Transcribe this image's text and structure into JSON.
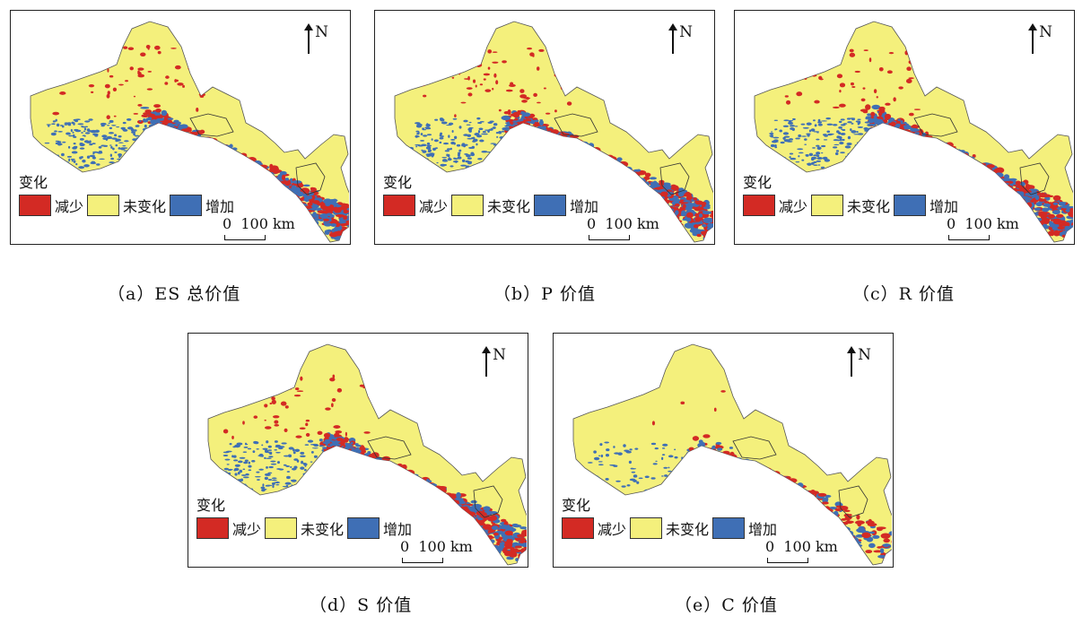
{
  "legend": {
    "title": "变化",
    "items": [
      {
        "label": "减少",
        "color": "#d32a24"
      },
      {
        "label": "未变化",
        "color": "#f4f07c"
      },
      {
        "label": "增加",
        "color": "#3f6fb5"
      }
    ]
  },
  "north_label": "N",
  "scale": {
    "zero": "0",
    "value": "100 km"
  },
  "panels": [
    {
      "caption": "（a）ES 总价值",
      "detail": "high"
    },
    {
      "caption": "（b）P 价值",
      "detail": "high"
    },
    {
      "caption": "（c）R 价值",
      "detail": "high"
    },
    {
      "caption": "（d）S 价值",
      "detail": "high"
    },
    {
      "caption": "（e）C 价值",
      "detail": "low"
    }
  ]
}
